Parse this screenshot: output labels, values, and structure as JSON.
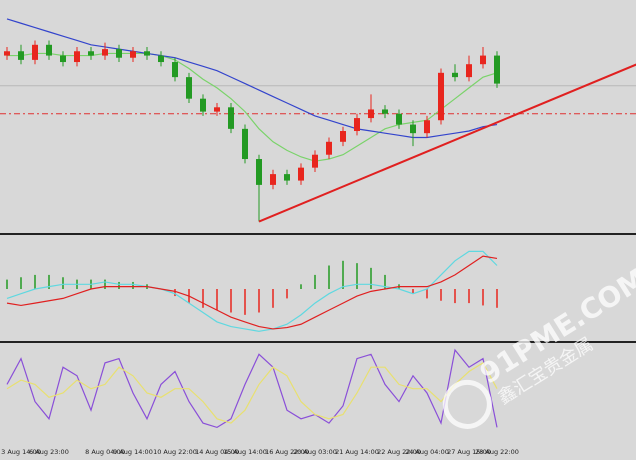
{
  "chart_data": [
    {
      "type": "candlestick",
      "categories": [
        null,
        "3 Aug 14:00",
        null,
        "6 Aug 23:00",
        null,
        null,
        null,
        "8 Aug 04:00",
        null,
        "9 Aug 14:00",
        null,
        null,
        "10 Aug 22:00",
        null,
        null,
        "14 Aug 04:00",
        null,
        "15 Aug 14:00",
        null,
        null,
        "16 Aug 22:00",
        null,
        "20 Aug 03:00",
        null,
        null,
        "21 Aug 14:00",
        null,
        null,
        "22 Aug 22:00",
        null,
        "24 Aug 04:00",
        null,
        null,
        "27 Aug 15:00",
        null,
        "28 Aug 22:00"
      ],
      "open": [
        80,
        82,
        78,
        85,
        80,
        77,
        82,
        80,
        83,
        79,
        82,
        80,
        77,
        70,
        60,
        54,
        56,
        46,
        32,
        20,
        25,
        22,
        28,
        34,
        40,
        45,
        51,
        55,
        53,
        48,
        44,
        50,
        72,
        70,
        76,
        80
      ],
      "high": [
        84,
        85,
        87,
        87,
        82,
        84,
        84,
        86,
        85,
        84,
        84,
        82,
        79,
        72,
        62,
        58,
        58,
        48,
        34,
        27,
        27,
        30,
        36,
        42,
        47,
        53,
        62,
        57,
        55,
        50,
        52,
        74,
        76,
        80,
        84,
        82
      ],
      "low": [
        78,
        76,
        76,
        78,
        75,
        75,
        78,
        78,
        77,
        77,
        78,
        75,
        68,
        58,
        52,
        52,
        44,
        30,
        3,
        18,
        20,
        20,
        26,
        32,
        38,
        43,
        49,
        51,
        46,
        38,
        42,
        48,
        68,
        68,
        74,
        65
      ],
      "close": [
        82,
        78,
        85,
        80,
        77,
        82,
        80,
        83,
        79,
        82,
        80,
        77,
        70,
        60,
        54,
        56,
        46,
        32,
        20,
        25,
        22,
        28,
        34,
        40,
        45,
        51,
        55,
        53,
        48,
        44,
        50,
        72,
        70,
        76,
        80,
        67
      ],
      "up_color": "#e8261e",
      "down_color": "#239a23",
      "series": [
        {
          "color": "#7ad36a",
          "values": [
            80,
            80,
            81,
            81,
            80,
            80,
            80,
            81,
            81,
            81,
            81,
            80,
            78,
            74,
            69,
            65,
            60,
            54,
            46,
            40,
            36,
            33,
            31,
            32,
            34,
            38,
            42,
            46,
            48,
            49,
            50,
            55,
            60,
            65,
            70,
            72
          ]
        },
        {
          "color": "#3344cc",
          "values": [
            97,
            95,
            93,
            91,
            89,
            87,
            85,
            84,
            83,
            82,
            81,
            80,
            79,
            77,
            75,
            73,
            70,
            67,
            64,
            61,
            58,
            55,
            52,
            50,
            48,
            46,
            45,
            44,
            43,
            42,
            42,
            43,
            44,
            45,
            47,
            48
          ]
        }
      ],
      "trendline": {
        "color": "#e02020",
        "x": [
          18,
          45
        ],
        "y": [
          3,
          76
        ]
      },
      "levels": [
        {
          "value": 53,
          "color": "#e03030",
          "dashed": true
        },
        {
          "value": 66,
          "color": "#b8b8b8",
          "dashed": false
        }
      ],
      "ylim": [
        0,
        103
      ]
    },
    {
      "type": "macd",
      "histogram": [
        0.2,
        0.25,
        0.3,
        0.3,
        0.25,
        0.2,
        0.2,
        0.2,
        0.15,
        0.15,
        0.1,
        0,
        -0.15,
        -0.3,
        -0.4,
        -0.45,
        -0.5,
        -0.55,
        -0.5,
        -0.4,
        -0.2,
        0.1,
        0.3,
        0.5,
        0.6,
        0.55,
        0.45,
        0.3,
        0.1,
        -0.1,
        -0.2,
        -0.25,
        -0.3,
        -0.3,
        -0.35,
        -0.4
      ],
      "up_color": "#239a23",
      "down_color": "#e8261e",
      "series": [
        {
          "color": "#5fd8e0",
          "values": [
            -0.2,
            -0.1,
            0,
            0.05,
            0.1,
            0.1,
            0.1,
            0.15,
            0.1,
            0.1,
            0.05,
            0,
            -0.1,
            -0.3,
            -0.5,
            -0.7,
            -0.8,
            -0.85,
            -0.9,
            -0.85,
            -0.75,
            -0.55,
            -0.3,
            -0.1,
            0.05,
            0.1,
            0.1,
            0.05,
            0,
            -0.1,
            0,
            0.3,
            0.6,
            0.8,
            0.8,
            0.5
          ]
        },
        {
          "color": "#e02020",
          "values": [
            -0.3,
            -0.35,
            -0.3,
            -0.25,
            -0.2,
            -0.1,
            0,
            0.05,
            0.05,
            0.05,
            0.05,
            0,
            -0.05,
            -0.15,
            -0.3,
            -0.45,
            -0.6,
            -0.7,
            -0.8,
            -0.85,
            -0.82,
            -0.75,
            -0.6,
            -0.45,
            -0.3,
            -0.15,
            -0.05,
            0,
            0.05,
            0.05,
            0.05,
            0.15,
            0.3,
            0.5,
            0.7,
            0.65
          ]
        }
      ],
      "ylim": [
        -1,
        1
      ]
    },
    {
      "type": "stochastic",
      "series": [
        {
          "color": "#8a4fd8",
          "values": [
            60,
            90,
            40,
            20,
            80,
            70,
            30,
            85,
            90,
            50,
            20,
            60,
            75,
            40,
            15,
            10,
            20,
            60,
            95,
            80,
            30,
            20,
            25,
            15,
            35,
            90,
            95,
            60,
            40,
            70,
            50,
            15,
            100,
            80,
            90,
            10
          ]
        },
        {
          "color": "#e8e070",
          "values": [
            55,
            65,
            60,
            45,
            50,
            65,
            55,
            60,
            80,
            70,
            50,
            45,
            55,
            55,
            40,
            20,
            15,
            30,
            60,
            80,
            70,
            40,
            25,
            20,
            25,
            50,
            80,
            80,
            60,
            55,
            55,
            40,
            60,
            75,
            85,
            55
          ]
        }
      ],
      "ylim": [
        0,
        100
      ]
    }
  ],
  "watermark": {
    "text": "91PME.COM",
    "subtext": "鑫汇宝贵金属"
  }
}
